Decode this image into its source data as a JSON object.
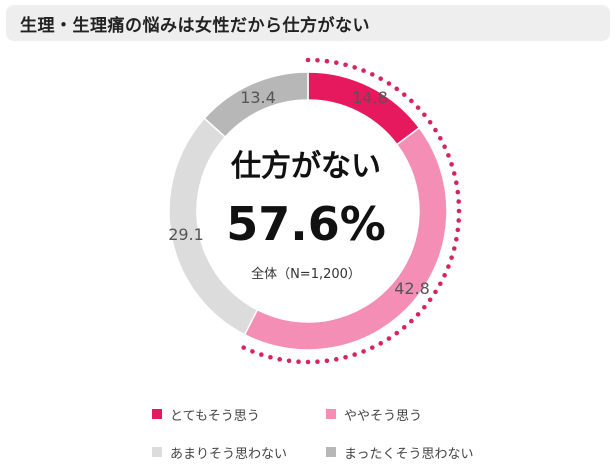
{
  "title": "生理・生理痛の悩みは女性だから仕方がない",
  "center": {
    "label": "仕方がない",
    "value": "57.6%",
    "note": "全体（N=1,200）"
  },
  "colors": {
    "highlight_dots": "#d6245e",
    "ring_bg": "#ffffff"
  },
  "chart_data": {
    "type": "pie",
    "variant": "donut",
    "title": "生理・生理痛の悩みは女性だから仕方がない",
    "series": [
      {
        "name": "とてもそう思う",
        "value": 14.8,
        "label": "14.8",
        "color": "#e6195e"
      },
      {
        "name": "ややそう思う",
        "value": 42.8,
        "label": "42.8",
        "color": "#f48eb5"
      },
      {
        "name": "あまりそう思わない",
        "value": 29.1,
        "label": "29.1",
        "color": "#dcdcdc"
      },
      {
        "name": "まったくそう思わない",
        "value": 13.4,
        "label": "13.4",
        "color": "#b7b7b7"
      }
    ],
    "legend": "bottom"
  }
}
